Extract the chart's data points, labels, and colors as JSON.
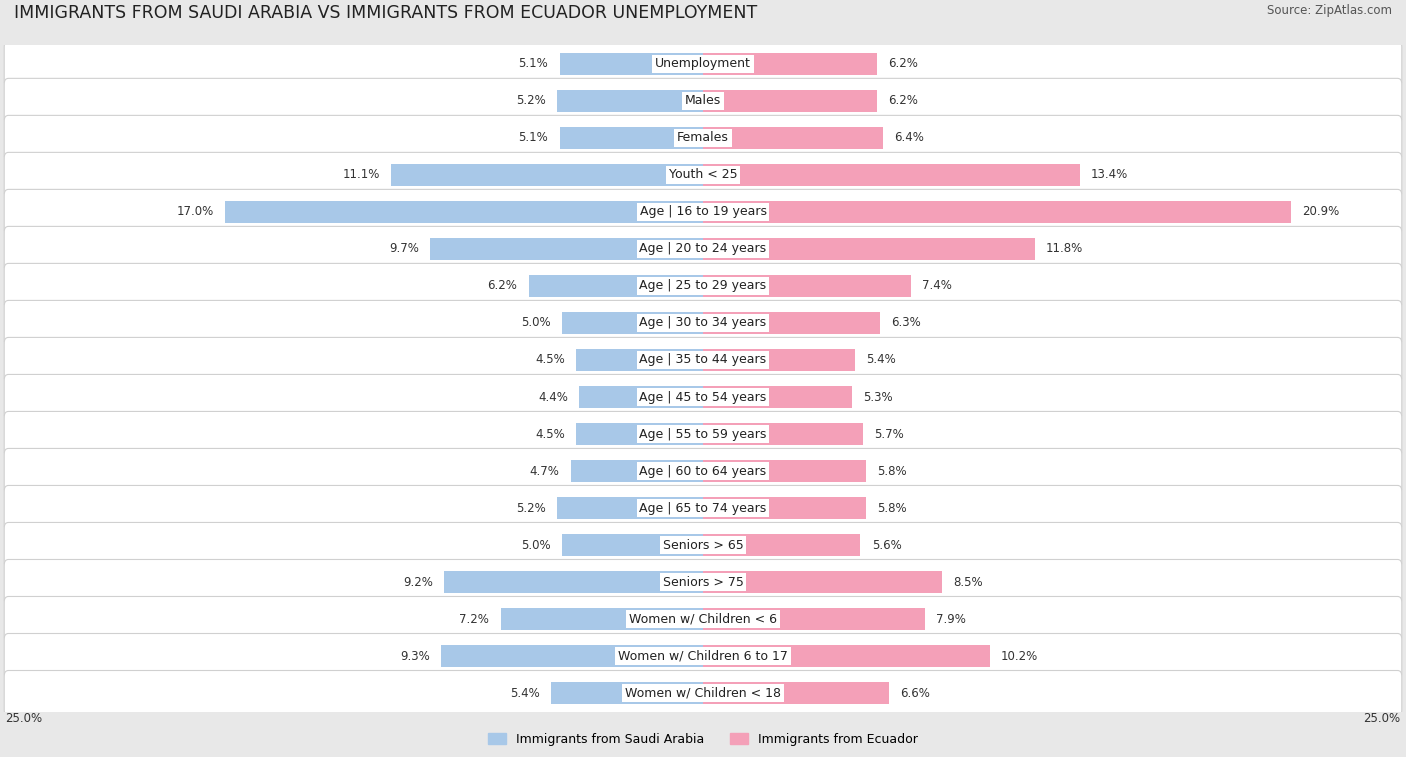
{
  "title": "IMMIGRANTS FROM SAUDI ARABIA VS IMMIGRANTS FROM ECUADOR UNEMPLOYMENT",
  "source": "Source: ZipAtlas.com",
  "categories": [
    "Unemployment",
    "Males",
    "Females",
    "Youth < 25",
    "Age | 16 to 19 years",
    "Age | 20 to 24 years",
    "Age | 25 to 29 years",
    "Age | 30 to 34 years",
    "Age | 35 to 44 years",
    "Age | 45 to 54 years",
    "Age | 55 to 59 years",
    "Age | 60 to 64 years",
    "Age | 65 to 74 years",
    "Seniors > 65",
    "Seniors > 75",
    "Women w/ Children < 6",
    "Women w/ Children 6 to 17",
    "Women w/ Children < 18"
  ],
  "saudi_values": [
    5.1,
    5.2,
    5.1,
    11.1,
    17.0,
    9.7,
    6.2,
    5.0,
    4.5,
    4.4,
    4.5,
    4.7,
    5.2,
    5.0,
    9.2,
    7.2,
    9.3,
    5.4
  ],
  "ecuador_values": [
    6.2,
    6.2,
    6.4,
    13.4,
    20.9,
    11.8,
    7.4,
    6.3,
    5.4,
    5.3,
    5.7,
    5.8,
    5.8,
    5.6,
    8.5,
    7.9,
    10.2,
    6.6
  ],
  "saudi_color": "#a8c8e8",
  "ecuador_color": "#f4a0b8",
  "saudi_label": "Immigrants from Saudi Arabia",
  "ecuador_label": "Immigrants from Ecuador",
  "axis_max": 25.0,
  "bar_height": 0.6,
  "background_color": "#e8e8e8",
  "row_bg_color": "#ffffff",
  "title_fontsize": 12.5,
  "label_fontsize": 9,
  "value_fontsize": 8.5,
  "source_fontsize": 8.5
}
